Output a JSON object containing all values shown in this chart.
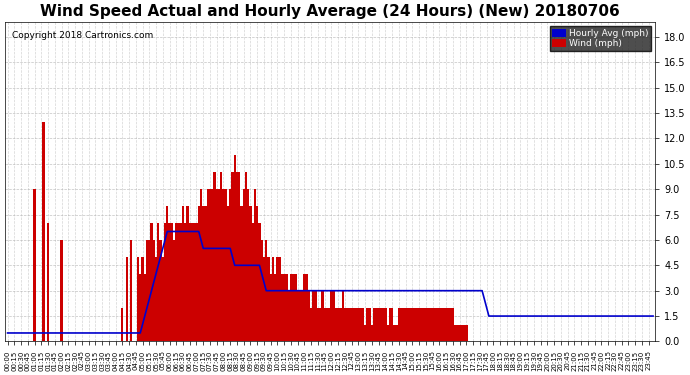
{
  "title": "Wind Speed Actual and Hourly Average (24 Hours) (New) 20180706",
  "copyright": "Copyright 2018 Cartronics.com",
  "ylim": [
    0.0,
    18.9
  ],
  "yticks": [
    0.0,
    1.5,
    3.0,
    4.5,
    6.0,
    7.5,
    9.0,
    10.5,
    12.0,
    13.5,
    15.0,
    16.5,
    18.0
  ],
  "legend_hourly_color": "#0000cc",
  "legend_wind_color": "#cc0000",
  "bar_color": "#cc0000",
  "line_color": "#0000cc",
  "background_color": "#ffffff",
  "grid_color": "#aaaaaa",
  "title_fontsize": 11,
  "wind_data": [
    0,
    0,
    0,
    0,
    0,
    0,
    0,
    0,
    0,
    0,
    0,
    0,
    9,
    0,
    0,
    0,
    13,
    0,
    7,
    0,
    0,
    0,
    0,
    0,
    6,
    0,
    0,
    0,
    0,
    0,
    0,
    0,
    0,
    0,
    0,
    0,
    0,
    0,
    0,
    0,
    0,
    0,
    0,
    0,
    0,
    0,
    0,
    0,
    0,
    0,
    0,
    2,
    0,
    5,
    0,
    6,
    0,
    0,
    5,
    4,
    5,
    4,
    6,
    6,
    7,
    6,
    5,
    7,
    6,
    5,
    7,
    8,
    7,
    7,
    6,
    7,
    7,
    7,
    8,
    7,
    8,
    7,
    7,
    7,
    7,
    8,
    9,
    8,
    8,
    9,
    9,
    9,
    10,
    9,
    9,
    10,
    9,
    9,
    8,
    9,
    10,
    11,
    10,
    10,
    8,
    9,
    10,
    9,
    8,
    7,
    9,
    8,
    7,
    6,
    5,
    6,
    5,
    4,
    5,
    4,
    5,
    5,
    4,
    4,
    4,
    3,
    4,
    4,
    4,
    3,
    3,
    3,
    4,
    4,
    3,
    2,
    3,
    3,
    2,
    2,
    3,
    2,
    2,
    2,
    3,
    3,
    2,
    2,
    2,
    3,
    2,
    2,
    2,
    2,
    2,
    2,
    2,
    2,
    2,
    1,
    2,
    2,
    1,
    2,
    2,
    2,
    2,
    2,
    2,
    1,
    2,
    2,
    1,
    1,
    2,
    2,
    2,
    2,
    2,
    2,
    2,
    2,
    2,
    2,
    2,
    2,
    2,
    2,
    2,
    2,
    2,
    2,
    2,
    2,
    2,
    2,
    2,
    2,
    2,
    1,
    1,
    1,
    1,
    1,
    1,
    0,
    0,
    0,
    0,
    0,
    0,
    0,
    0,
    0,
    0,
    0,
    0,
    0,
    0,
    0,
    0,
    0,
    0,
    0,
    0,
    0,
    0,
    0,
    0,
    0,
    0,
    0,
    0,
    0,
    0,
    0,
    0,
    0,
    0,
    0,
    0,
    0,
    0,
    0,
    0,
    0,
    0,
    0,
    0,
    0,
    0,
    0,
    0,
    0,
    0,
    0,
    0,
    0,
    0,
    0,
    0,
    0,
    0,
    0,
    0,
    0,
    0,
    0,
    0,
    0,
    0,
    0,
    0,
    0,
    0,
    0,
    0,
    0,
    0,
    0,
    0,
    0,
    0,
    0,
    0,
    0,
    0,
    0
  ],
  "hourly_avg_data": [
    0.5,
    0.5,
    0.5,
    0.5,
    0.5,
    0.5,
    0.5,
    0.5,
    0.5,
    0.5,
    0.5,
    0.5,
    0.5,
    0.5,
    0.5,
    0.5,
    0.5,
    0.5,
    0.5,
    0.5,
    0.5,
    0.5,
    0.5,
    0.5,
    0.5,
    0.5,
    0.5,
    0.5,
    0.5,
    0.5,
    0.5,
    0.5,
    0.5,
    0.5,
    0.5,
    0.5,
    0.5,
    0.5,
    0.5,
    0.5,
    0.5,
    0.5,
    0.5,
    0.5,
    0.5,
    0.5,
    0.5,
    0.5,
    0.5,
    0.5,
    0.5,
    0.5,
    0.5,
    0.5,
    0.5,
    0.5,
    0.5,
    0.5,
    0.5,
    0.5,
    1.0,
    1.5,
    2.0,
    2.5,
    3.0,
    3.5,
    4.0,
    4.5,
    5.0,
    5.5,
    6.0,
    6.5,
    6.5,
    6.5,
    6.5,
    6.5,
    6.5,
    6.5,
    6.5,
    6.5,
    6.5,
    6.5,
    6.5,
    6.5,
    6.5,
    6.5,
    6.0,
    5.5,
    5.5,
    5.5,
    5.5,
    5.5,
    5.5,
    5.5,
    5.5,
    5.5,
    5.5,
    5.5,
    5.5,
    5.5,
    5.0,
    4.5,
    4.5,
    4.5,
    4.5,
    4.5,
    4.5,
    4.5,
    4.5,
    4.5,
    4.5,
    4.5,
    4.5,
    4.0,
    3.5,
    3.0,
    3.0,
    3.0,
    3.0,
    3.0,
    3.0,
    3.0,
    3.0,
    3.0,
    3.0,
    3.0,
    3.0,
    3.0,
    3.0,
    3.0,
    3.0,
    3.0,
    3.0,
    3.0,
    3.0,
    3.0,
    3.0,
    3.0,
    3.0,
    3.0,
    3.0,
    3.0,
    3.0,
    3.0,
    3.0,
    3.0,
    3.0,
    3.0,
    3.0,
    3.0,
    3.0,
    3.0,
    3.0,
    3.0,
    3.0,
    3.0,
    3.0,
    3.0,
    3.0,
    3.0,
    3.0,
    3.0,
    3.0,
    3.0,
    3.0,
    3.0,
    3.0,
    3.0,
    3.0,
    3.0,
    3.0,
    3.0,
    3.0,
    3.0,
    3.0,
    3.0,
    3.0,
    3.0,
    3.0,
    3.0,
    3.0,
    3.0,
    3.0,
    3.0,
    3.0,
    3.0,
    3.0,
    3.0,
    3.0,
    3.0,
    3.0,
    3.0,
    3.0,
    3.0,
    3.0,
    3.0,
    3.0,
    3.0,
    3.0,
    3.0,
    3.0,
    3.0,
    3.0,
    3.0,
    3.0,
    3.0,
    3.0,
    3.0,
    3.0,
    3.0,
    3.0,
    3.0,
    2.5,
    2.0,
    1.5,
    1.5,
    1.5,
    1.5,
    1.5,
    1.5,
    1.5,
    1.5,
    1.5,
    1.5,
    1.5,
    1.5,
    1.5,
    1.5,
    1.5,
    1.5,
    1.5,
    1.5,
    1.5,
    1.5,
    1.5,
    1.5,
    1.5,
    1.5,
    1.5,
    1.5,
    1.5,
    1.5,
    1.5,
    1.5,
    1.5,
    1.5,
    1.5,
    1.5,
    1.5,
    1.5,
    1.5,
    1.5,
    1.5,
    1.5,
    1.5,
    1.5,
    1.5,
    1.5,
    1.5,
    1.5,
    1.5,
    1.5,
    1.5,
    1.5,
    1.5,
    1.5,
    1.5,
    1.5,
    1.5,
    1.5,
    1.5,
    1.5,
    1.5,
    1.5,
    1.5,
    1.5,
    1.5,
    1.5,
    1.5,
    1.5,
    1.5,
    1.5,
    1.5,
    1.5,
    1.5,
    1.5,
    1.5,
    1.5,
    1.5,
    1.5,
    1.5,
    1.5,
    1.5,
    1.5
  ]
}
